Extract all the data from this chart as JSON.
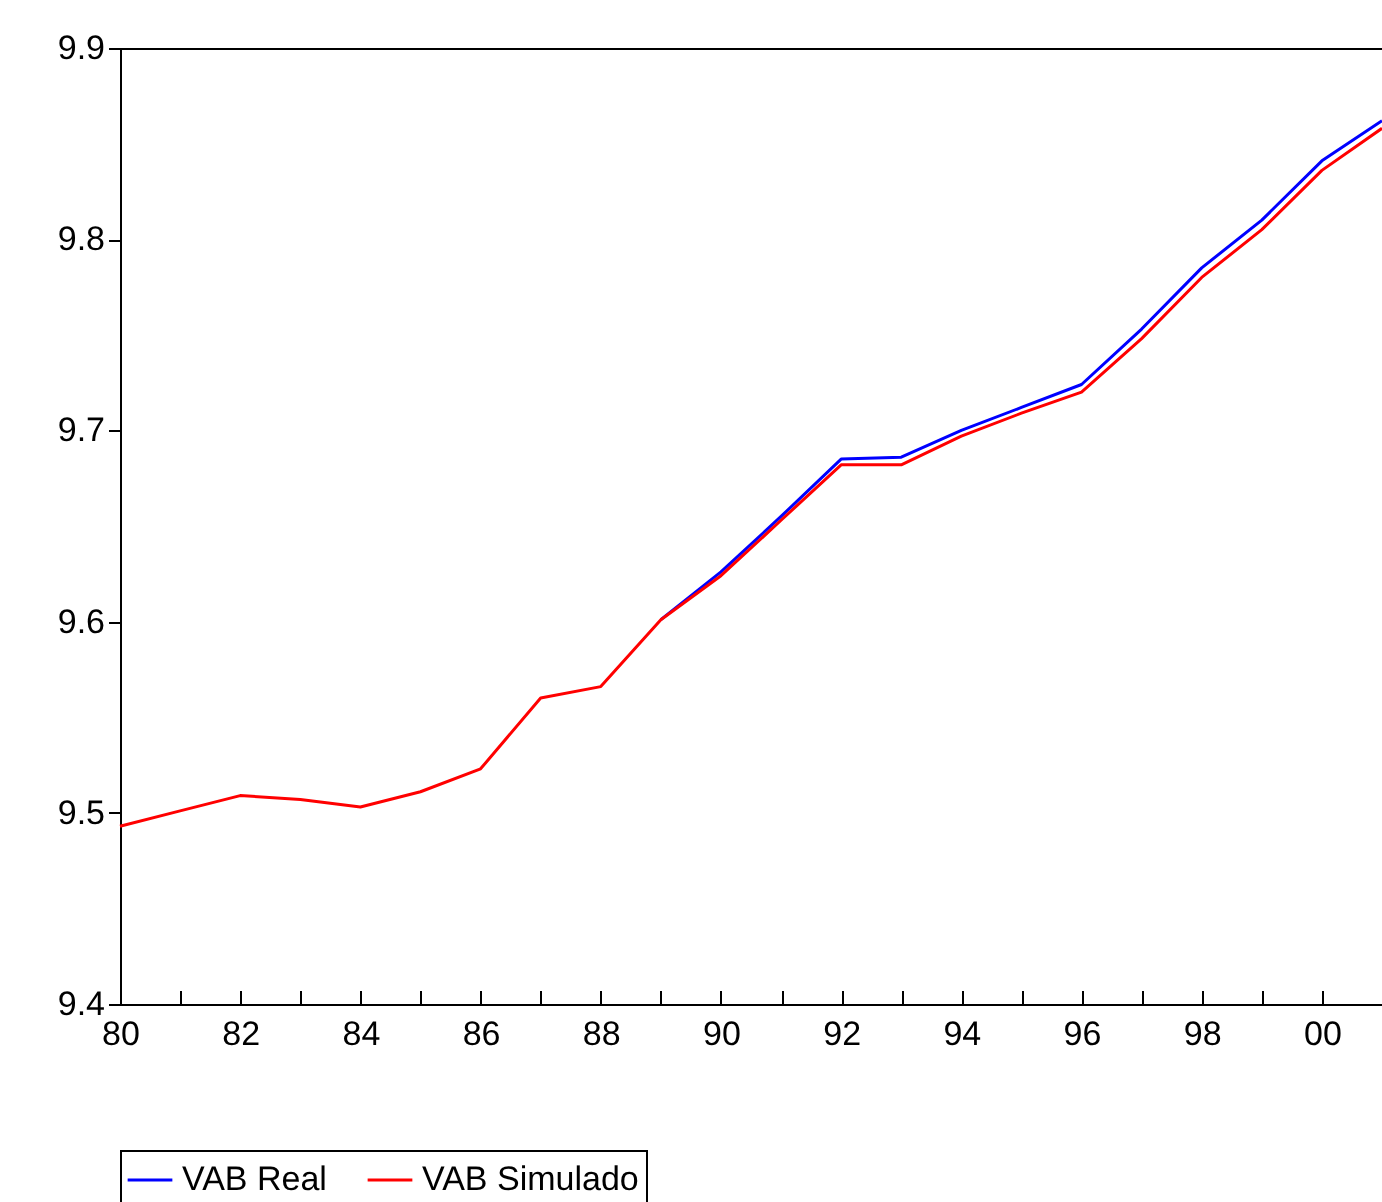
{
  "chart_data": {
    "type": "line",
    "x": [
      1980,
      1981,
      1982,
      1983,
      1984,
      1985,
      1986,
      1987,
      1988,
      1989,
      1990,
      1991,
      1992,
      1993,
      1994,
      1995,
      1996,
      1997,
      1998,
      1999,
      2000,
      2001
    ],
    "series": [
      {
        "name": "VAB Real",
        "color": "#0000ff",
        "values": [
          null,
          null,
          null,
          null,
          null,
          null,
          null,
          null,
          null,
          9.601,
          9.626,
          9.655,
          9.685,
          9.686,
          9.7,
          9.712,
          9.724,
          9.753,
          9.785,
          9.81,
          9.841,
          9.862
        ]
      },
      {
        "name": "VAB Simulado",
        "color": "#ff0000",
        "values": [
          9.493,
          9.501,
          9.509,
          9.507,
          9.503,
          9.511,
          9.523,
          9.56,
          9.566,
          9.601,
          9.624,
          9.653,
          9.682,
          9.682,
          9.697,
          9.709,
          9.72,
          9.748,
          9.78,
          9.805,
          9.836,
          9.858
        ]
      }
    ],
    "xlim": [
      1980,
      2001
    ],
    "xticks": [
      {
        "value": 1980,
        "label": "80"
      },
      {
        "value": 1981,
        "label": null
      },
      {
        "value": 1982,
        "label": "82"
      },
      {
        "value": 1983,
        "label": null
      },
      {
        "value": 1984,
        "label": "84"
      },
      {
        "value": 1985,
        "label": null
      },
      {
        "value": 1986,
        "label": "86"
      },
      {
        "value": 1987,
        "label": null
      },
      {
        "value": 1988,
        "label": "88"
      },
      {
        "value": 1989,
        "label": null
      },
      {
        "value": 1990,
        "label": "90"
      },
      {
        "value": 1991,
        "label": null
      },
      {
        "value": 1992,
        "label": "92"
      },
      {
        "value": 1993,
        "label": null
      },
      {
        "value": 1994,
        "label": "94"
      },
      {
        "value": 1995,
        "label": null
      },
      {
        "value": 1996,
        "label": "96"
      },
      {
        "value": 1997,
        "label": null
      },
      {
        "value": 1998,
        "label": "98"
      },
      {
        "value": 1999,
        "label": null
      },
      {
        "value": 2000,
        "label": "00"
      },
      {
        "value": 2001,
        "label": null
      }
    ],
    "ylim": [
      9.4,
      9.9
    ],
    "yticks": [
      {
        "value": 9.4,
        "label": "9.4"
      },
      {
        "value": 9.5,
        "label": "9.5"
      },
      {
        "value": 9.6,
        "label": "9.6"
      },
      {
        "value": 9.7,
        "label": "9.7"
      },
      {
        "value": 9.8,
        "label": "9.8"
      },
      {
        "value": 9.9,
        "label": "9.9"
      }
    ],
    "grid": false,
    "legend": "bottom",
    "marker": "none",
    "line_style": "solid"
  }
}
